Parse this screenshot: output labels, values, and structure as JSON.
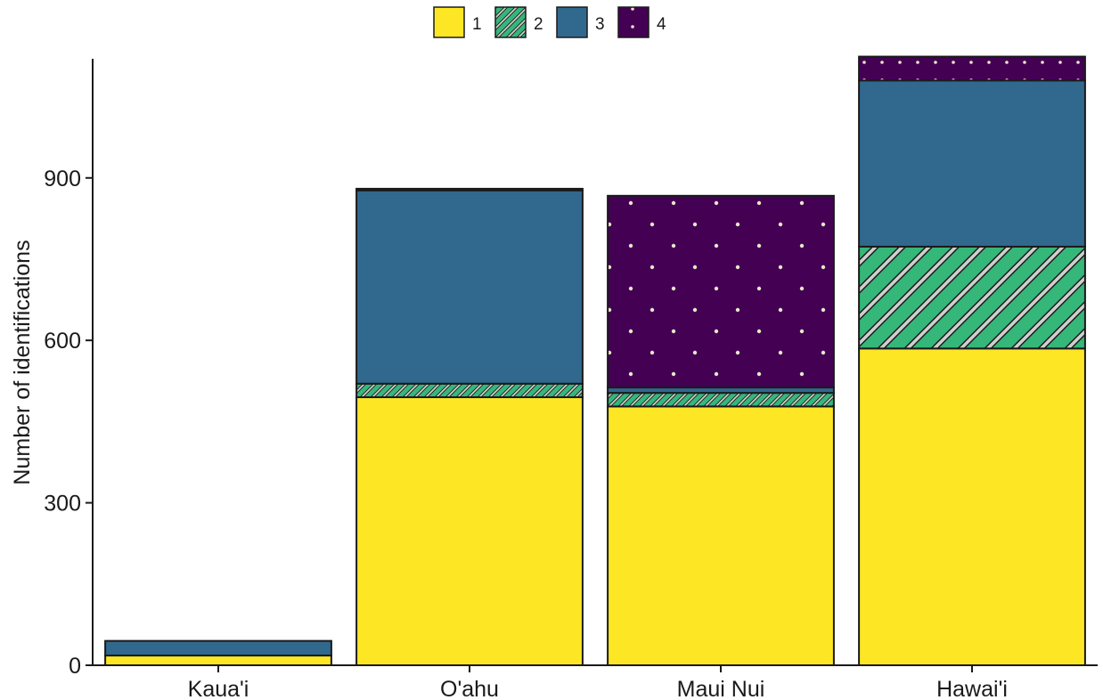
{
  "chart_data": {
    "type": "bar",
    "stacked": true,
    "title": "",
    "xlabel": "",
    "ylabel": "Number of identifications",
    "ylim": [
      0,
      1120
    ],
    "yticks": [
      0,
      300,
      600,
      900
    ],
    "grid": false,
    "legend_position": "top",
    "categories": [
      "Kaua'i",
      "O'ahu",
      "Maui Nui",
      "Hawai'i"
    ],
    "series": [
      {
        "name": "1",
        "color": "#FDE725",
        "pattern": "none",
        "values": [
          18,
          495,
          478,
          585
        ]
      },
      {
        "name": "2",
        "color": "#35B779",
        "pattern": "stripe",
        "values": [
          0,
          25,
          25,
          188
        ]
      },
      {
        "name": "3",
        "color": "#31688E",
        "pattern": "none",
        "values": [
          27,
          357,
          10,
          307
        ]
      },
      {
        "name": "4",
        "color": "#440154",
        "pattern": "dots",
        "values": [
          0,
          3,
          354,
          44
        ]
      }
    ]
  }
}
